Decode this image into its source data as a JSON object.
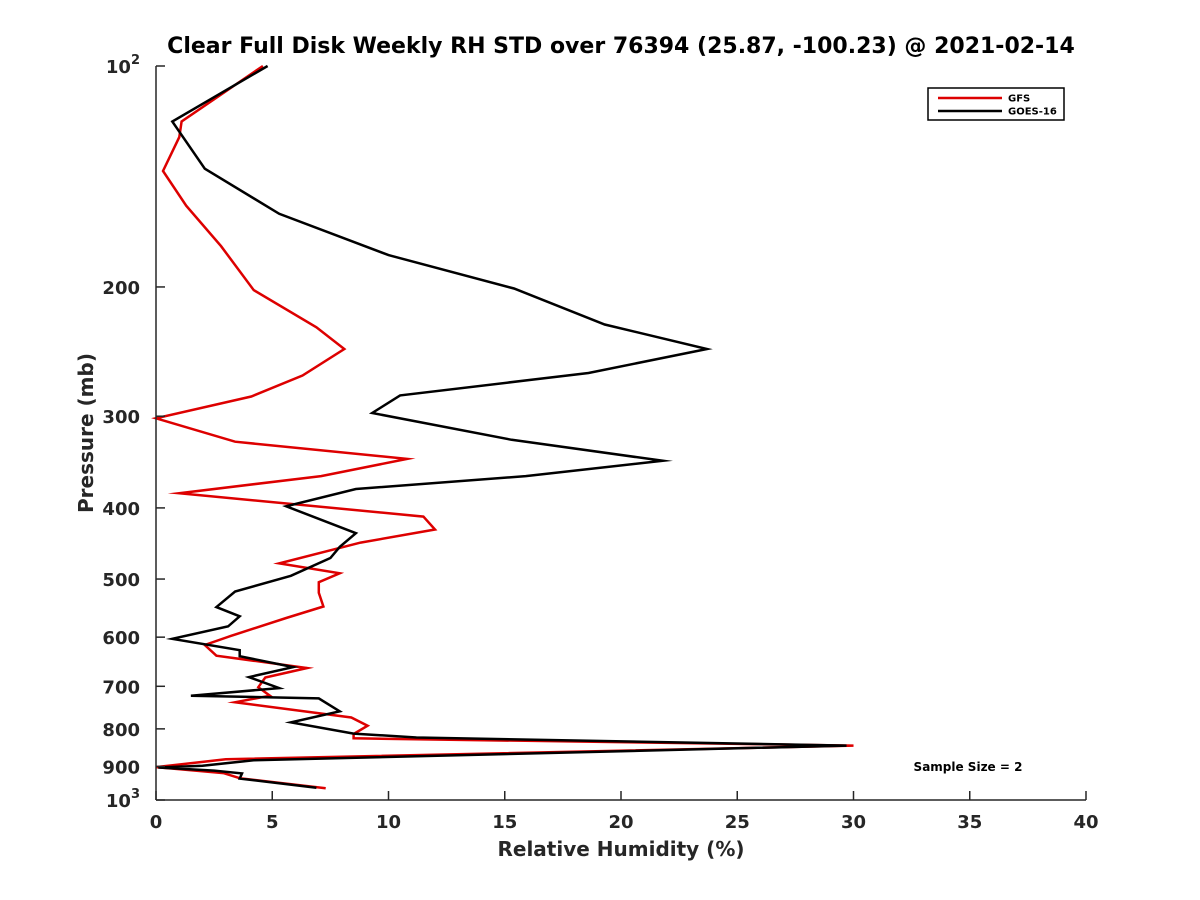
{
  "chart_data": {
    "type": "line",
    "title": "Clear Full Disk Weekly RH STD over 76394 (25.87, -100.23) @ 2021-02-14",
    "xlabel": "Relative Humidity (%)",
    "ylabel": "Pressure (mb)",
    "xlim": [
      0,
      40
    ],
    "ylim": [
      100,
      1000
    ],
    "yscale": "log",
    "y_reversed": true,
    "grid": false,
    "x_ticks": [
      "0",
      "5",
      "10",
      "15",
      "20",
      "25",
      "30",
      "35",
      "40"
    ],
    "y_ticks": [
      {
        "value": 100,
        "label": "10",
        "sup": "2"
      },
      {
        "value": 200,
        "label": "200",
        "sup": ""
      },
      {
        "value": 300,
        "label": "300",
        "sup": ""
      },
      {
        "value": 400,
        "label": "400",
        "sup": ""
      },
      {
        "value": 500,
        "label": "500",
        "sup": ""
      },
      {
        "value": 600,
        "label": "600",
        "sup": ""
      },
      {
        "value": 700,
        "label": "700",
        "sup": ""
      },
      {
        "value": 800,
        "label": "800",
        "sup": ""
      },
      {
        "value": 900,
        "label": "900",
        "sup": ""
      },
      {
        "value": 1000,
        "label": "10",
        "sup": "3"
      }
    ],
    "legend_position": "top-right",
    "annotation": "Sample Size = 2",
    "series": [
      {
        "name": "GFS",
        "color": "#dd0000",
        "points": [
          [
            4.6,
            100
          ],
          [
            1.1,
            119
          ],
          [
            1.0,
            125
          ],
          [
            0.3,
            139
          ],
          [
            1.3,
            155
          ],
          [
            2.8,
            176
          ],
          [
            4.2,
            202
          ],
          [
            6.9,
            227
          ],
          [
            8.1,
            243
          ],
          [
            6.3,
            264
          ],
          [
            4.1,
            282
          ],
          [
            0.0,
            302
          ],
          [
            3.4,
            325
          ],
          [
            10.8,
            343
          ],
          [
            7.1,
            362
          ],
          [
            1.0,
            382
          ],
          [
            11.5,
            411
          ],
          [
            12.0,
            428
          ],
          [
            8.8,
            446
          ],
          [
            5.3,
            476
          ],
          [
            7.9,
            491
          ],
          [
            7.0,
            505
          ],
          [
            7.0,
            522
          ],
          [
            7.2,
            545
          ],
          [
            5.6,
            565
          ],
          [
            3.2,
            598
          ],
          [
            2.1,
            615
          ],
          [
            2.6,
            636
          ],
          [
            6.5,
            661
          ],
          [
            4.7,
            681
          ],
          [
            4.4,
            702
          ],
          [
            4.9,
            721
          ],
          [
            3.4,
            736
          ],
          [
            8.4,
            772
          ],
          [
            9.1,
            792
          ],
          [
            8.5,
            813
          ],
          [
            8.5,
            824
          ],
          [
            30.0,
            843
          ],
          [
            3.0,
            880
          ],
          [
            0.0,
            902
          ],
          [
            2.9,
            919
          ],
          [
            3.6,
            934
          ],
          [
            7.3,
            964
          ]
        ]
      },
      {
        "name": "GOES-16",
        "color": "#000000",
        "points": [
          [
            4.8,
            100
          ],
          [
            0.7,
            119
          ],
          [
            2.1,
            138
          ],
          [
            5.3,
            159
          ],
          [
            10.0,
            181
          ],
          [
            15.4,
            201
          ],
          [
            19.3,
            225
          ],
          [
            23.7,
            243
          ],
          [
            18.6,
            262
          ],
          [
            10.5,
            281
          ],
          [
            9.3,
            297
          ],
          [
            15.3,
            323
          ],
          [
            21.8,
            345
          ],
          [
            15.9,
            362
          ],
          [
            8.6,
            377
          ],
          [
            5.6,
            398
          ],
          [
            8.6,
            433
          ],
          [
            7.9,
            452
          ],
          [
            7.5,
            468
          ],
          [
            5.8,
            495
          ],
          [
            3.4,
            520
          ],
          [
            2.6,
            546
          ],
          [
            3.6,
            562
          ],
          [
            3.1,
            580
          ],
          [
            0.7,
            603
          ],
          [
            3.6,
            625
          ],
          [
            3.6,
            637
          ],
          [
            5.9,
            659
          ],
          [
            4.0,
            680
          ],
          [
            5.3,
            704
          ],
          [
            1.5,
            721
          ],
          [
            7.0,
            727
          ],
          [
            7.9,
            757
          ],
          [
            5.8,
            784
          ],
          [
            8.5,
            812
          ],
          [
            11.2,
            822
          ],
          [
            29.7,
            843
          ],
          [
            4.2,
            883
          ],
          [
            2.0,
            898
          ],
          [
            0.1,
            903
          ],
          [
            2.5,
            912
          ],
          [
            3.7,
            920
          ],
          [
            3.6,
            935
          ],
          [
            6.9,
            962
          ]
        ]
      }
    ]
  }
}
